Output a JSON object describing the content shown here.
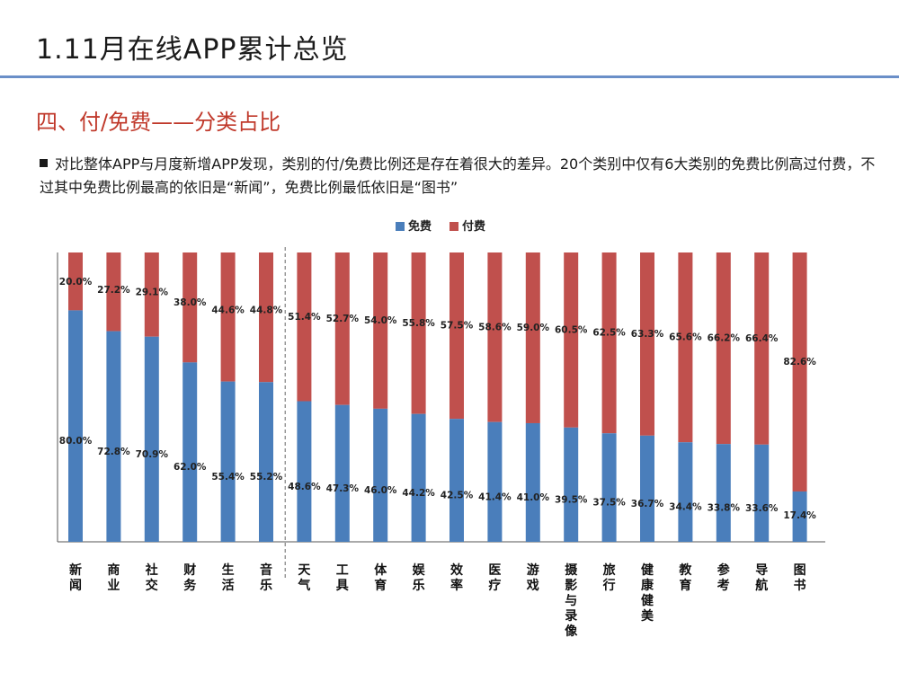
{
  "slide": {
    "title": "1.11月在线APP累计总览",
    "section_heading": "四、付/免费——分类占比",
    "summary": "对比整体APP与月度新增APP发现，类别的付/免费比例还是存在着很大的差异。20个类别中仅有6大类别的免费比例高过付费，不过其中免费比例最高的依旧是“新闻”，免费比例最低依旧是“图书”"
  },
  "chart_data": {
    "type": "bar",
    "stacked": true,
    "percent_stacked": true,
    "legend_position": "top-center",
    "grid": false,
    "ylim": [
      0,
      100
    ],
    "categories": [
      "新闻",
      "商业",
      "社交",
      "财务",
      "生活",
      "音乐",
      "天气",
      "工具",
      "体育",
      "娱乐",
      "效率",
      "医疗",
      "游戏",
      "摄影与录像",
      "旅行",
      "健康健美",
      "教育",
      "参考",
      "导航",
      "图书"
    ],
    "series": [
      {
        "name": "免费",
        "color": "#4a7ebb",
        "values": [
          80.0,
          72.8,
          70.9,
          62.0,
          55.4,
          55.2,
          48.6,
          47.3,
          46.0,
          44.2,
          42.5,
          41.4,
          41.0,
          39.5,
          37.5,
          36.7,
          34.4,
          33.8,
          33.6,
          17.4
        ],
        "labels": [
          "80.0%",
          "72.8%",
          "70.9%",
          "62.0%",
          "55.4%",
          "55.2%",
          "48.6%",
          "47.3%",
          "46.0%",
          "44.2%",
          "42.5%",
          "41.4%",
          "41.0%",
          "39.5%",
          "37.5%",
          "36.7%",
          "34.4%",
          "33.8%",
          "33.6%",
          "17.4%"
        ]
      },
      {
        "name": "付费",
        "color": "#c0504d",
        "values": [
          20.0,
          27.2,
          29.1,
          38.0,
          44.6,
          44.8,
          51.4,
          52.7,
          54.0,
          55.8,
          57.5,
          58.6,
          59.0,
          60.5,
          62.5,
          63.3,
          65.6,
          66.2,
          66.4,
          82.6
        ],
        "labels": [
          "20.0%",
          "27.2%",
          "29.1%",
          "38.0%",
          "44.6%",
          "44.8%",
          "51.4%",
          "52.7%",
          "54.0%",
          "55.8%",
          "57.5%",
          "58.6%",
          "59.0%",
          "60.5%",
          "62.5%",
          "63.3%",
          "65.6%",
          "66.2%",
          "66.4%",
          "82.6%"
        ]
      }
    ],
    "divider_after_index": 5
  }
}
